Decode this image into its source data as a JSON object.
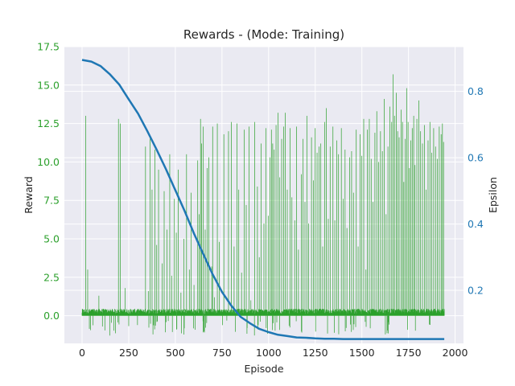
{
  "chart_data": {
    "type": "bar+line",
    "title": "Rewards - (Mode: Training)",
    "xlabel": "Episode",
    "ylabel_left": "Reward",
    "ylabel_right": "Epsilon",
    "xlim": [
      -95,
      2045
    ],
    "ylim_left": [
      -1.8,
      17.5
    ],
    "ylim_right": [
      0.04,
      0.935
    ],
    "xticks": [
      0,
      250,
      500,
      750,
      1000,
      1250,
      1500,
      1750,
      2000
    ],
    "xtick_labels": [
      "0",
      "250",
      "500",
      "750",
      "1000",
      "1250",
      "1500",
      "1750",
      "2000"
    ],
    "yticks_left": [
      0.0,
      2.5,
      5.0,
      7.5,
      10.0,
      12.5,
      15.0,
      17.5
    ],
    "ytick_labels_left": [
      "0.0",
      "2.5",
      "5.0",
      "7.5",
      "10.0",
      "12.5",
      "15.0",
      "17.5"
    ],
    "yticks_right": [
      0.2,
      0.4,
      0.6,
      0.8
    ],
    "ytick_labels_right": [
      "0.2",
      "0.4",
      "0.6",
      "0.8"
    ],
    "grid": true,
    "colors": {
      "reward": "#2ca02c",
      "epsilon": "#1f77b4",
      "background": "#eaeaf2",
      "grid": "#ffffff",
      "text": "#262626"
    },
    "series": [
      {
        "type": "bar",
        "axis": "left",
        "episodes": [
          0,
          1942
        ],
        "baseline_reward": 0.3,
        "high_rewards": [
          [
            20,
            13.0
          ],
          [
            30,
            3.0
          ],
          [
            90,
            1.3
          ],
          [
            195,
            12.8
          ],
          [
            205,
            12.5
          ],
          [
            230,
            1.8
          ],
          [
            340,
            11.0
          ],
          [
            355,
            1.6
          ],
          [
            365,
            11.6
          ],
          [
            375,
            8.2
          ],
          [
            390,
            10.8
          ],
          [
            400,
            4.6
          ],
          [
            410,
            9.5
          ],
          [
            430,
            3.4
          ],
          [
            440,
            8.1
          ],
          [
            455,
            5.6
          ],
          [
            470,
            10.5
          ],
          [
            480,
            2.6
          ],
          [
            495,
            7.6
          ],
          [
            505,
            5.4
          ],
          [
            515,
            9.5
          ],
          [
            530,
            1.5
          ],
          [
            545,
            5.0
          ],
          [
            560,
            10.5
          ],
          [
            575,
            3.0
          ],
          [
            585,
            8.0
          ],
          [
            600,
            2.0
          ],
          [
            620,
            10.1
          ],
          [
            628,
            6.6
          ],
          [
            635,
            12.8
          ],
          [
            640,
            11.2
          ],
          [
            650,
            12.3
          ],
          [
            660,
            5.6
          ],
          [
            670,
            9.6
          ],
          [
            680,
            10.3
          ],
          [
            695,
            3.2
          ],
          [
            700,
            12.3
          ],
          [
            710,
            1.2
          ],
          [
            725,
            12.5
          ],
          [
            735,
            4.8
          ],
          [
            760,
            11.8
          ],
          [
            785,
            12.0
          ],
          [
            800,
            12.6
          ],
          [
            815,
            4.5
          ],
          [
            830,
            12.5
          ],
          [
            840,
            8.2
          ],
          [
            855,
            2.8
          ],
          [
            870,
            12.1
          ],
          [
            880,
            7.2
          ],
          [
            895,
            12.3
          ],
          [
            905,
            1.0
          ],
          [
            925,
            12.6
          ],
          [
            940,
            8.4
          ],
          [
            950,
            3.8
          ],
          [
            960,
            11.2
          ],
          [
            975,
            6.0
          ],
          [
            985,
            12.2
          ],
          [
            998,
            6.5
          ],
          [
            1008,
            10.3
          ],
          [
            1015,
            12.1
          ],
          [
            1022,
            11.2
          ],
          [
            1030,
            10.8
          ],
          [
            1040,
            12.4
          ],
          [
            1050,
            13.2
          ],
          [
            1060,
            9.0
          ],
          [
            1070,
            11.5
          ],
          [
            1080,
            12.3
          ],
          [
            1090,
            13.2
          ],
          [
            1100,
            8.2
          ],
          [
            1115,
            12.2
          ],
          [
            1125,
            7.7
          ],
          [
            1140,
            6.2
          ],
          [
            1150,
            12.3
          ],
          [
            1160,
            4.3
          ],
          [
            1175,
            9.2
          ],
          [
            1185,
            11.5
          ],
          [
            1195,
            7.4
          ],
          [
            1205,
            13.0
          ],
          [
            1215,
            6.0
          ],
          [
            1230,
            11.6
          ],
          [
            1240,
            8.8
          ],
          [
            1250,
            12.2
          ],
          [
            1260,
            10.6
          ],
          [
            1270,
            11.0
          ],
          [
            1280,
            11.2
          ],
          [
            1290,
            4.5
          ],
          [
            1300,
            12.6
          ],
          [
            1310,
            13.5
          ],
          [
            1320,
            6.3
          ],
          [
            1330,
            11.0
          ],
          [
            1345,
            12.3
          ],
          [
            1355,
            6.2
          ],
          [
            1365,
            11.4
          ],
          [
            1375,
            10.5
          ],
          [
            1390,
            12.2
          ],
          [
            1400,
            7.6
          ],
          [
            1410,
            10.8
          ],
          [
            1420,
            5.7
          ],
          [
            1435,
            10.3
          ],
          [
            1445,
            10.7
          ],
          [
            1455,
            8.0
          ],
          [
            1470,
            12.1
          ],
          [
            1480,
            4.5
          ],
          [
            1490,
            11.8
          ],
          [
            1500,
            10.4
          ],
          [
            1510,
            12.8
          ],
          [
            1522,
            3.0
          ],
          [
            1530,
            12.1
          ],
          [
            1540,
            12.8
          ],
          [
            1550,
            10.2
          ],
          [
            1560,
            7.4
          ],
          [
            1570,
            11.9
          ],
          [
            1580,
            13.3
          ],
          [
            1590,
            10.0
          ],
          [
            1600,
            12.0
          ],
          [
            1610,
            10.7
          ],
          [
            1620,
            14.1
          ],
          [
            1630,
            6.6
          ],
          [
            1640,
            11.0
          ],
          [
            1650,
            13.6
          ],
          [
            1660,
            12.6
          ],
          [
            1668,
            15.7
          ],
          [
            1675,
            13.0
          ],
          [
            1685,
            14.5
          ],
          [
            1692,
            12.0
          ],
          [
            1700,
            11.6
          ],
          [
            1710,
            13.4
          ],
          [
            1718,
            12.6
          ],
          [
            1725,
            8.7
          ],
          [
            1733,
            11.5
          ],
          [
            1740,
            14.8
          ],
          [
            1748,
            12.6
          ],
          [
            1755,
            9.6
          ],
          [
            1762,
            11.4
          ],
          [
            1770,
            12.2
          ],
          [
            1778,
            13.0
          ],
          [
            1785,
            9.8
          ],
          [
            1795,
            12.8
          ],
          [
            1805,
            14.0
          ],
          [
            1815,
            12.0
          ],
          [
            1825,
            11.2
          ],
          [
            1835,
            12.4
          ],
          [
            1845,
            8.2
          ],
          [
            1855,
            11.4
          ],
          [
            1865,
            12.6
          ],
          [
            1875,
            10.6
          ],
          [
            1885,
            12.2
          ],
          [
            1895,
            11.0
          ],
          [
            1905,
            10.2
          ],
          [
            1915,
            12.3
          ],
          [
            1925,
            11.8
          ],
          [
            1932,
            12.5
          ],
          [
            1938,
            11.3
          ]
        ]
      },
      {
        "type": "line",
        "axis": "right",
        "name": "Epsilon",
        "x": [
          0,
          50,
          100,
          150,
          200,
          250,
          300,
          350,
          400,
          450,
          500,
          550,
          600,
          650,
          700,
          750,
          800,
          850,
          900,
          950,
          1000,
          1050,
          1100,
          1150,
          1200,
          1250,
          1300,
          1350,
          1400,
          1500,
          1600,
          1700,
          1800,
          1900,
          1942
        ],
        "y": [
          0.895,
          0.89,
          0.876,
          0.851,
          0.82,
          0.776,
          0.733,
          0.68,
          0.624,
          0.565,
          0.502,
          0.439,
          0.371,
          0.309,
          0.248,
          0.195,
          0.154,
          0.12,
          0.101,
          0.084,
          0.074,
          0.066,
          0.062,
          0.058,
          0.057,
          0.055,
          0.054,
          0.054,
          0.053,
          0.053,
          0.053,
          0.053,
          0.053,
          0.053,
          0.053
        ]
      }
    ]
  }
}
